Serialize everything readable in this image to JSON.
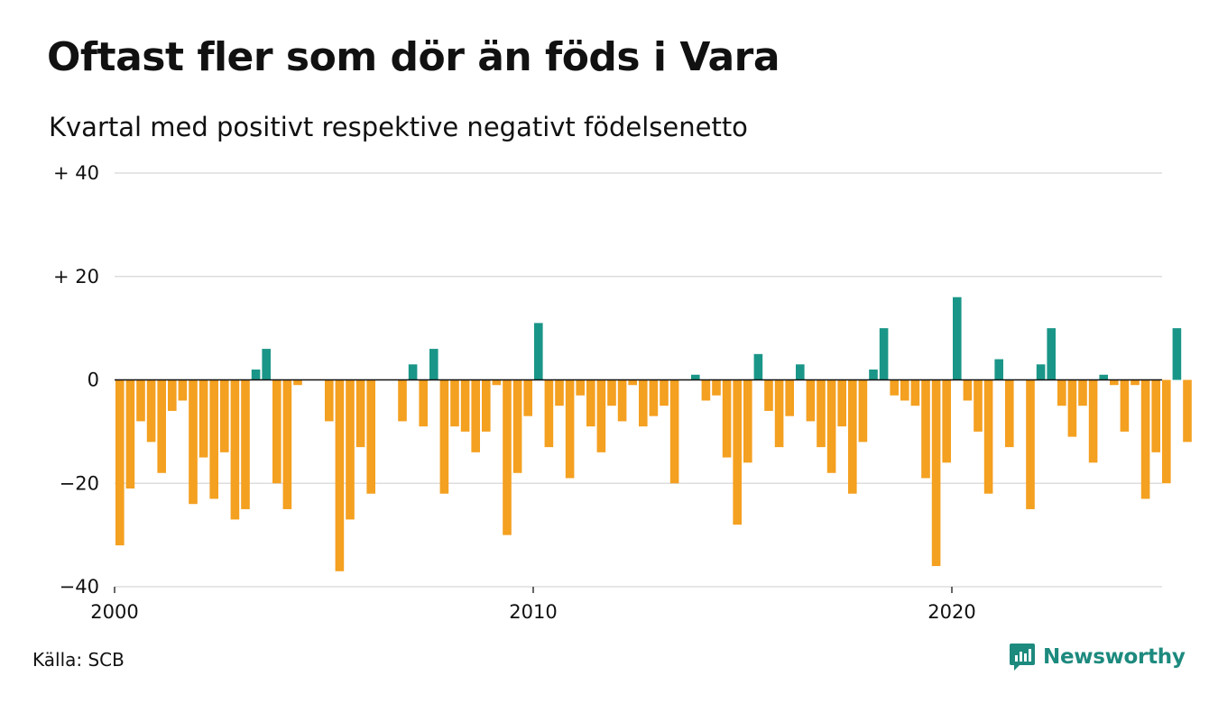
{
  "header": {
    "title": "Oftast fler som dör än föds i Vara",
    "subtitle": "Kvartal med positivt respektive negativt födelsenetto"
  },
  "footer": {
    "source": "Källa: SCB",
    "brand": "Newsworthy",
    "brand_icon": "newsworthy-chart-bubble-icon"
  },
  "colors": {
    "negative": "#f4a020",
    "positive": "#1a9688",
    "gridline": "#dddddd",
    "zero_line": "#111111",
    "brand": "#1d8a7e"
  },
  "chart_data": {
    "type": "bar",
    "title": "Oftast fler som dör än föds i Vara",
    "subtitle": "Kvartal med positivt respektive negativt födelsenetto",
    "xlabel": "",
    "ylabel": "",
    "ylim": [
      -40,
      40
    ],
    "grid": true,
    "y_ticks": [
      {
        "value": 40,
        "label": "+ 40"
      },
      {
        "value": 20,
        "label": "+ 20"
      },
      {
        "value": 0,
        "label": "0"
      },
      {
        "value": -20,
        "label": "−20"
      },
      {
        "value": -40,
        "label": "−40"
      }
    ],
    "x_ticks": [
      {
        "value": 2000,
        "label": "2000"
      },
      {
        "value": 2010,
        "label": "2010"
      },
      {
        "value": 2020,
        "label": "2020"
      }
    ],
    "start_year": 2000,
    "periods_per_year": 4,
    "values": [
      -32,
      -21,
      -8,
      -12,
      -18,
      -6,
      -4,
      -24,
      -15,
      -23,
      -14,
      -27,
      -25,
      2,
      6,
      -20,
      -25,
      -1,
      0,
      0,
      -8,
      -37,
      -27,
      -13,
      -22,
      0,
      0,
      -8,
      3,
      -9,
      6,
      -22,
      -9,
      -10,
      -14,
      -10,
      -1,
      -30,
      -18,
      -7,
      11,
      -13,
      -5,
      -19,
      -3,
      -9,
      -14,
      -5,
      -8,
      -1,
      -9,
      -7,
      -5,
      -20,
      0,
      1,
      -4,
      -3,
      -15,
      -28,
      -16,
      5,
      -6,
      -13,
      -7,
      3,
      -8,
      -13,
      -18,
      -9,
      -22,
      -12,
      2,
      10,
      -3,
      -4,
      -5,
      -19,
      -36,
      -16,
      16,
      -4,
      -10,
      -22,
      4,
      -13,
      0,
      -25,
      3,
      10,
      -5,
      -11,
      -5,
      -16,
      1,
      -1,
      -10,
      -1,
      -23,
      -14,
      -20,
      10,
      -12
    ]
  }
}
